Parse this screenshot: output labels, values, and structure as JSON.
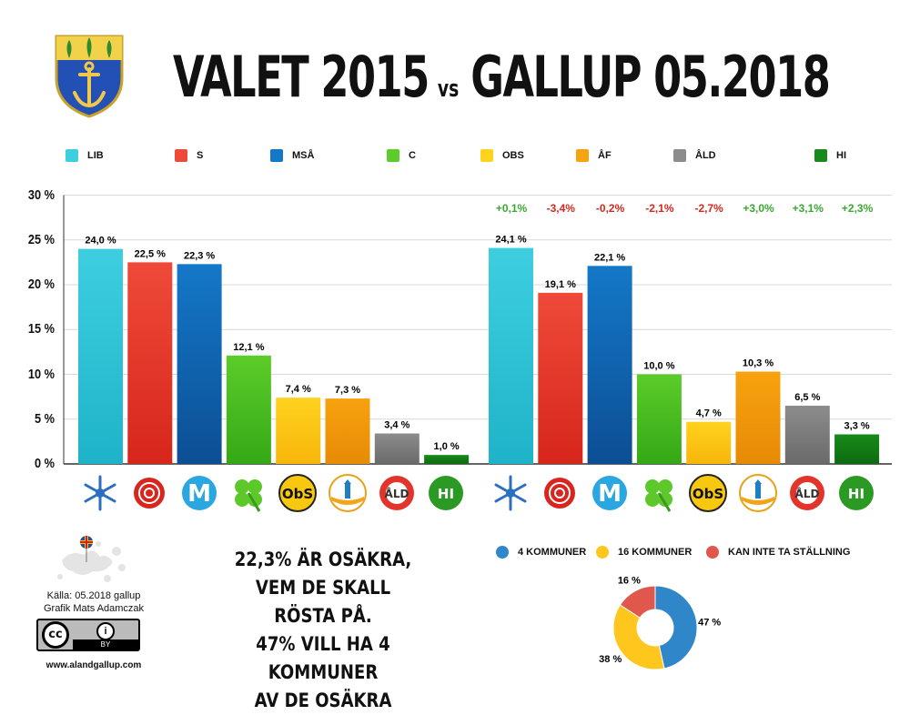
{
  "title": {
    "part1": "VALET 2015",
    "vs": "vs",
    "part2": "GALLUP 05.2018"
  },
  "legend": [
    {
      "label": "LIB",
      "color": "#3dcfe0"
    },
    {
      "label": "S",
      "color": "#ee4a3a"
    },
    {
      "label": "MSÅ",
      "color": "#1478c8"
    },
    {
      "label": "C",
      "color": "#5ccc2a"
    },
    {
      "label": "OBS",
      "color": "#ffd21e"
    },
    {
      "label": "ÅF",
      "color": "#f7a20f"
    },
    {
      "label": "ÅLD",
      "color": "#8c8c8c"
    },
    {
      "label": "HI",
      "color": "#178a1a"
    }
  ],
  "y_ticks": [
    "30 %",
    "25 %",
    "20 %",
    "15 %",
    "10 %",
    "5 %",
    "0 %"
  ],
  "chart_data": [
    {
      "type": "bar",
      "title": "VALET 2015",
      "categories": [
        "LIB",
        "S",
        "MSÅ",
        "C",
        "OBS",
        "ÅF",
        "ÅLD",
        "HI"
      ],
      "values": [
        24.0,
        22.5,
        22.3,
        12.1,
        7.4,
        7.3,
        3.4,
        1.0
      ],
      "labels": [
        "24,0 %",
        "22,5 %",
        "22,3 %",
        "12,1 %",
        "7,4 %",
        "7,3 %",
        "3,4 %",
        "1,0 %"
      ],
      "ylim": [
        0,
        30
      ],
      "grid": true
    },
    {
      "type": "bar",
      "title": "GALLUP 05.2018",
      "categories": [
        "LIB",
        "S",
        "MSÅ",
        "C",
        "OBS",
        "ÅF",
        "ÅLD",
        "HI"
      ],
      "values": [
        24.1,
        19.1,
        22.1,
        10.0,
        4.7,
        10.3,
        6.5,
        3.3
      ],
      "labels": [
        "24,1 %",
        "19,1 %",
        "22,1 %",
        "10,0 %",
        "4,7 %",
        "10,3 %",
        "6,5 %",
        "3,3 %"
      ],
      "changes": [
        "+0,1%",
        "-3,4%",
        "-0,2%",
        "-2,1%",
        "-2,7%",
        "+3,0%",
        "+3,1%",
        "+2,3%"
      ],
      "ylim": [
        0,
        30
      ],
      "grid": true
    },
    {
      "type": "pie",
      "categories": [
        "4 KOMMUNER",
        "16 KOMMUNER",
        "KAN INTE TA STÄLLNING"
      ],
      "values": [
        47,
        38,
        16
      ],
      "labels": [
        "47 %",
        "38 %",
        "16 %"
      ],
      "colors": [
        "#2f86c9",
        "#ffc61e",
        "#e0574c"
      ]
    }
  ],
  "change_colors": {
    "positive": "#3aa832",
    "negative": "#d22a1e"
  },
  "bottom_text": [
    "22,3% ÄR OSÄKRA,",
    "VEM DE SKALL RÖSTA PÅ.",
    "47% VILL HA 4 KOMMUNER",
    "AV DE OSÄKRA"
  ],
  "credits": {
    "source": "Källa: 05.2018 gallup",
    "graphic": "Grafik Mats Adamczak",
    "website": "www.alandgallup.com",
    "license": "BY"
  },
  "party_icons": [
    "snowflake-icon",
    "rose-icon",
    "m-logo-icon",
    "clover-icon",
    "obs-logo-icon",
    "lighthouse-icon",
    "ald-lifebuoy-icon",
    "hi-logo-icon"
  ],
  "icon_texts": {
    "obs": "ObS",
    "ald": "ÅLD",
    "hi": "HI"
  }
}
